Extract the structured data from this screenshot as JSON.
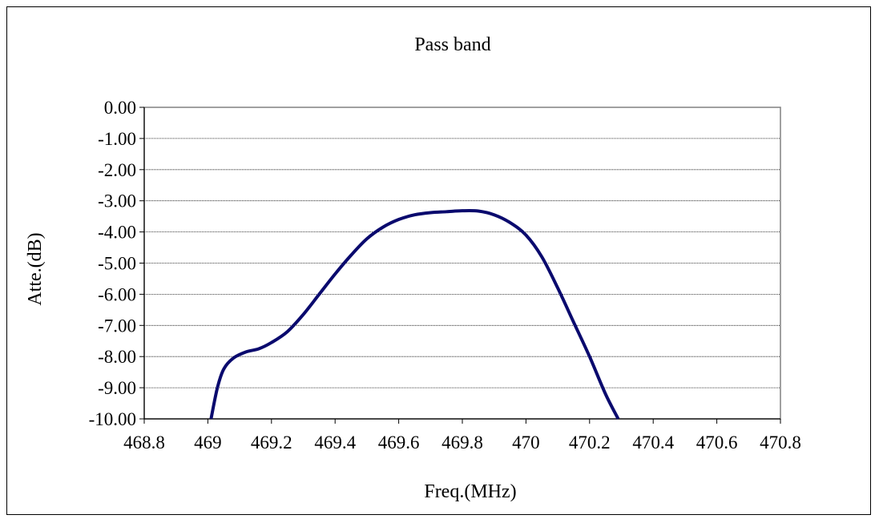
{
  "chart_data": {
    "type": "line",
    "title": "Pass band",
    "xlabel": "Freq.(MHz)",
    "ylabel": "Atte.(dB)",
    "xlim": [
      468.8,
      470.8
    ],
    "ylim": [
      -10,
      0
    ],
    "x_ticks": [
      "468.8",
      "469",
      "469.2",
      "469.4",
      "469.6",
      "469.8",
      "470",
      "470.2",
      "470.4",
      "470.6",
      "470.8"
    ],
    "y_ticks": [
      "0.00",
      "-1.00",
      "-2.00",
      "-3.00",
      "-4.00",
      "-5.00",
      "-6.00",
      "-7.00",
      "-8.00",
      "-9.00",
      "-10.00"
    ],
    "grid": true,
    "legend": "none",
    "series": [
      {
        "color": "#0a0a6e",
        "x": [
          469.01,
          469.03,
          469.05,
          469.08,
          469.12,
          469.16,
          469.2,
          469.25,
          469.3,
          469.35,
          469.4,
          469.45,
          469.5,
          469.55,
          469.6,
          469.65,
          469.7,
          469.75,
          469.8,
          469.85,
          469.9,
          469.95,
          470.0,
          470.05,
          470.1,
          470.15,
          470.2,
          470.25,
          470.29
        ],
        "values": [
          -10.0,
          -9.0,
          -8.4,
          -8.05,
          -7.85,
          -7.75,
          -7.55,
          -7.2,
          -6.65,
          -6.0,
          -5.35,
          -4.75,
          -4.22,
          -3.85,
          -3.6,
          -3.45,
          -3.38,
          -3.35,
          -3.32,
          -3.33,
          -3.45,
          -3.7,
          -4.1,
          -4.8,
          -5.8,
          -6.9,
          -8.0,
          -9.2,
          -10.0
        ]
      }
    ]
  }
}
